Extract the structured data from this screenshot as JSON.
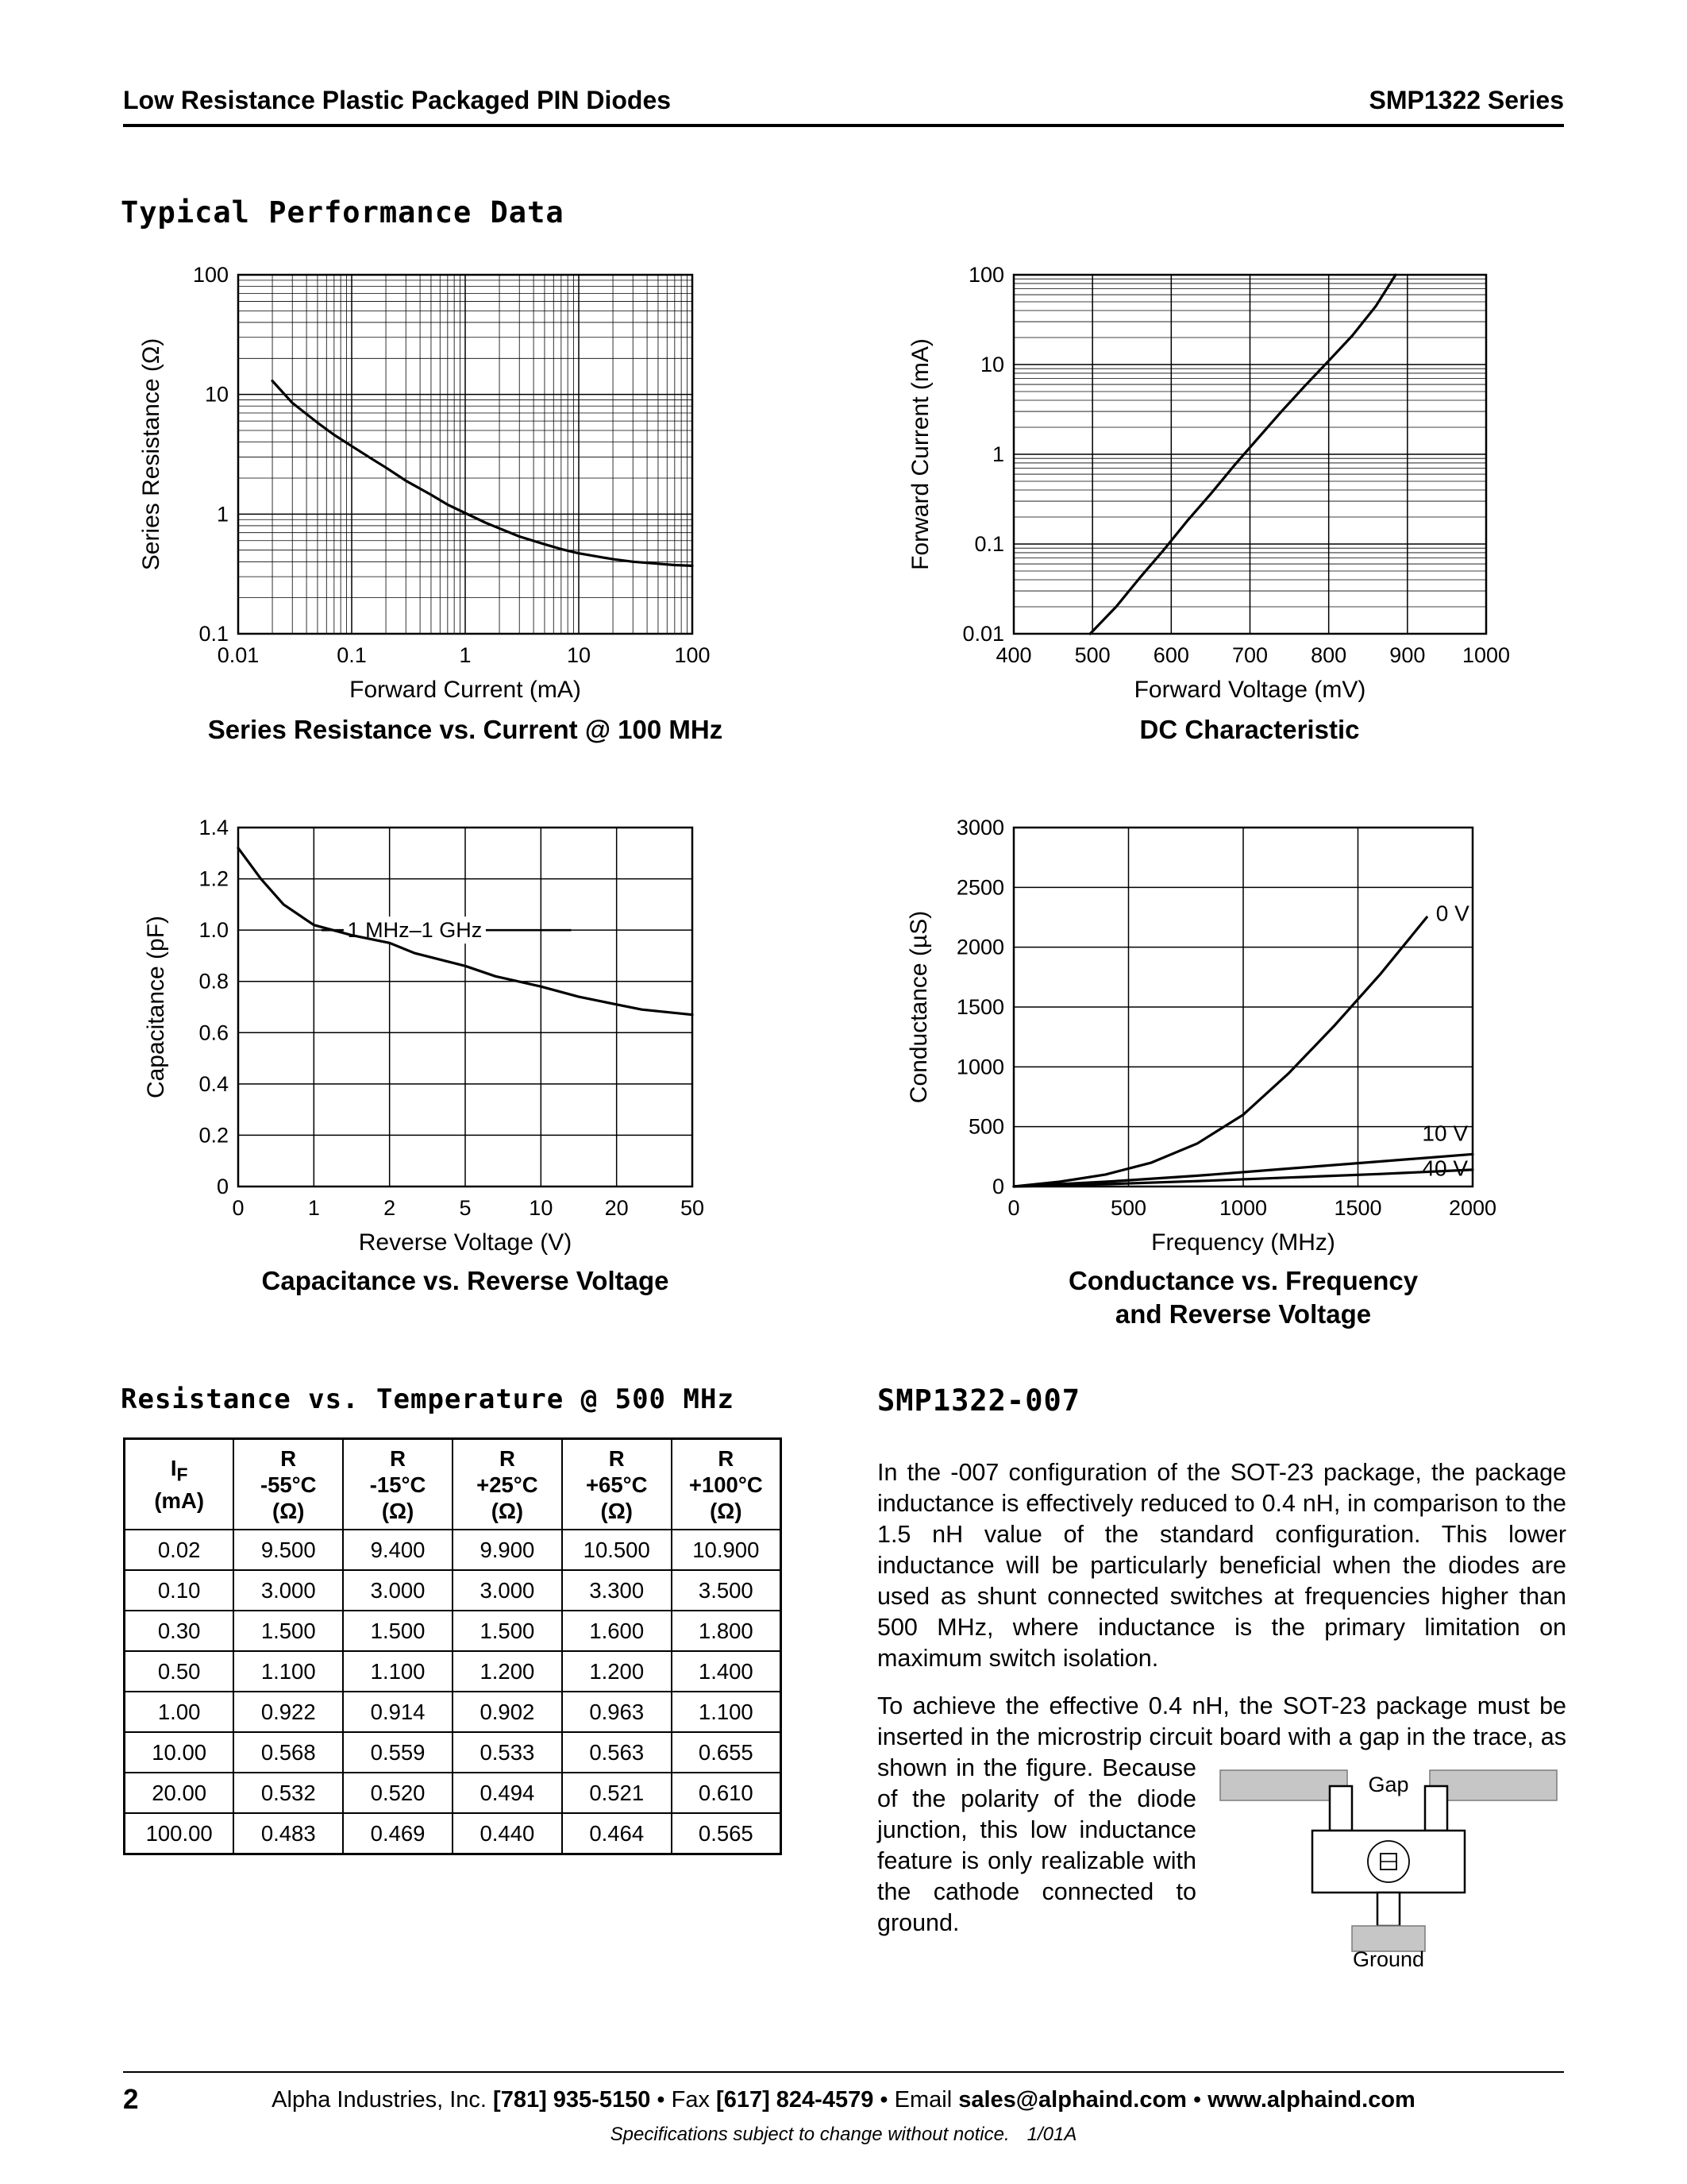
{
  "page": {
    "header_left": "Low Resistance Plastic Packaged PIN Diodes",
    "header_right": "SMP1322 Series",
    "section_title": "Typical Performance Data",
    "page_number": "2",
    "footer_segments": [
      {
        "t": "Alpha Industries, Inc. ",
        "b": false,
        "link": false
      },
      {
        "t": "[781] 935-5150",
        "b": true,
        "link": false
      },
      {
        "t": " • Fax ",
        "b": false,
        "link": false
      },
      {
        "t": "[617] 824-4579",
        "b": true,
        "link": false
      },
      {
        "t": " • Email ",
        "b": false,
        "link": false
      },
      {
        "t": "sales@alphaind.com",
        "b": true,
        "link": true
      },
      {
        "t": " • ",
        "b": false,
        "link": false
      },
      {
        "t": "www.alphaind.com",
        "b": true,
        "link": true
      }
    ],
    "footer_note": "Specifications subject to change without notice.",
    "footer_rev": "1/01A"
  },
  "chart_data": [
    {
      "id": "series-resistance-vs-current",
      "type": "line",
      "title": "Series Resistance vs. Current @ 100 MHz",
      "xlabel": "Forward Current (mA)",
      "ylabel": "Series Resistance (Ω)",
      "x": {
        "scale": "log",
        "range": [
          0.01,
          100
        ],
        "ticks": [
          [
            0.01,
            "0.01"
          ],
          [
            0.1,
            "0.1"
          ],
          [
            1,
            "1"
          ],
          [
            10,
            "10"
          ],
          [
            100,
            "100"
          ]
        ]
      },
      "y": {
        "scale": "log",
        "range": [
          0.1,
          100
        ],
        "ticks": [
          [
            100,
            "100"
          ],
          [
            10,
            "10"
          ],
          [
            1,
            "1"
          ],
          [
            0.1,
            "0.1"
          ]
        ]
      },
      "grid": "log-log full minor",
      "series": [
        {
          "name": "series-resistance",
          "points": [
            [
              0.02,
              13
            ],
            [
              0.03,
              8.5
            ],
            [
              0.05,
              5.8
            ],
            [
              0.07,
              4.6
            ],
            [
              0.1,
              3.7
            ],
            [
              0.15,
              2.9
            ],
            [
              0.2,
              2.45
            ],
            [
              0.3,
              1.9
            ],
            [
              0.5,
              1.45
            ],
            [
              0.7,
              1.2
            ],
            [
              1,
              1.02
            ],
            [
              1.5,
              0.85
            ],
            [
              2,
              0.76
            ],
            [
              3,
              0.65
            ],
            [
              5,
              0.56
            ],
            [
              7,
              0.51
            ],
            [
              10,
              0.47
            ],
            [
              15,
              0.44
            ],
            [
              20,
              0.42
            ],
            [
              30,
              0.4
            ],
            [
              50,
              0.385
            ],
            [
              70,
              0.375
            ],
            [
              100,
              0.37
            ]
          ]
        }
      ]
    },
    {
      "id": "dc-characteristic",
      "type": "line",
      "title": "DC Characteristic",
      "xlabel": "Forward Voltage (mV)",
      "ylabel": "Forward Current (mA)",
      "x": {
        "scale": "linear",
        "range": [
          400,
          1000
        ],
        "ticks": [
          [
            400,
            "400"
          ],
          [
            500,
            "500"
          ],
          [
            600,
            "600"
          ],
          [
            700,
            "700"
          ],
          [
            800,
            "800"
          ],
          [
            900,
            "900"
          ],
          [
            1000,
            "1000"
          ]
        ]
      },
      "y": {
        "scale": "log",
        "range": [
          0.01,
          100
        ],
        "ticks": [
          [
            100,
            "100"
          ],
          [
            10,
            "10"
          ],
          [
            1,
            "1"
          ],
          [
            0.1,
            "0.1"
          ],
          [
            0.01,
            "0.01"
          ]
        ]
      },
      "grid": "semilog-y",
      "series": [
        {
          "name": "dc-iv",
          "points": [
            [
              497,
              0.01
            ],
            [
              530,
              0.02
            ],
            [
              560,
              0.042
            ],
            [
              590,
              0.085
            ],
            [
              620,
              0.18
            ],
            [
              650,
              0.36
            ],
            [
              680,
              0.75
            ],
            [
              710,
              1.5
            ],
            [
              740,
              3
            ],
            [
              770,
              5.8
            ],
            [
              800,
              11
            ],
            [
              830,
              21
            ],
            [
              860,
              45
            ],
            [
              885,
              100
            ]
          ]
        }
      ]
    },
    {
      "id": "capacitance-vs-reverse-voltage",
      "type": "line",
      "title": "Capacitance vs. Reverse Voltage",
      "xlabel": "Reverse Voltage (V)",
      "ylabel": "Capacitance (pF)",
      "x": {
        "scale": "segmented",
        "ticks": [
          [
            0,
            "0"
          ],
          [
            1,
            "1"
          ],
          [
            2,
            "2"
          ],
          [
            5,
            "5"
          ],
          [
            10,
            "10"
          ],
          [
            20,
            "20"
          ],
          [
            50,
            "50"
          ]
        ]
      },
      "y": {
        "scale": "linear",
        "range": [
          0,
          1.4
        ],
        "ticks": [
          [
            0,
            "0"
          ],
          [
            0.2,
            "0.2"
          ],
          [
            0.4,
            "0.4"
          ],
          [
            0.6,
            "0.6"
          ],
          [
            0.8,
            "0.8"
          ],
          [
            1,
            "1.0"
          ],
          [
            1.2,
            "1.2"
          ],
          [
            1.4,
            "1.4"
          ]
        ]
      },
      "grid": "linear both",
      "annotation": {
        "text": "1 MHz–1 GHz",
        "y": 1.0,
        "line_x1": 1.1,
        "line_x2": 14,
        "text_x": 3
      },
      "series": [
        {
          "name": "capacitance",
          "points": [
            [
              0,
              1.32
            ],
            [
              0.3,
              1.2
            ],
            [
              0.6,
              1.1
            ],
            [
              1,
              1.02
            ],
            [
              1.5,
              0.98
            ],
            [
              2,
              0.95
            ],
            [
              3,
              0.91
            ],
            [
              5,
              0.86
            ],
            [
              7,
              0.82
            ],
            [
              10,
              0.78
            ],
            [
              15,
              0.74
            ],
            [
              20,
              0.71
            ],
            [
              30,
              0.69
            ],
            [
              50,
              0.67
            ]
          ]
        }
      ]
    },
    {
      "id": "conductance-vs-frequency",
      "type": "line",
      "title": "Conductance vs. Frequency",
      "title2": "and Reverse Voltage",
      "xlabel": "Frequency (MHz)",
      "ylabel": "Conductance (µS)",
      "x": {
        "scale": "linear",
        "range": [
          0,
          2000
        ],
        "ticks": [
          [
            0,
            "0"
          ],
          [
            500,
            "500"
          ],
          [
            1000,
            "1000"
          ],
          [
            1500,
            "1500"
          ],
          [
            2000,
            "2000"
          ]
        ]
      },
      "y": {
        "scale": "linear",
        "range": [
          0,
          3000
        ],
        "ticks": [
          [
            0,
            "0"
          ],
          [
            500,
            "500"
          ],
          [
            1000,
            "1000"
          ],
          [
            1500,
            "1500"
          ],
          [
            2000,
            "2000"
          ],
          [
            2500,
            "2500"
          ],
          [
            3000,
            "3000"
          ]
        ]
      },
      "grid": "linear both",
      "series": [
        {
          "name": "0 V",
          "points": [
            [
              0,
              0
            ],
            [
              200,
              40
            ],
            [
              400,
              100
            ],
            [
              600,
              200
            ],
            [
              800,
              360
            ],
            [
              1000,
              600
            ],
            [
              1200,
              950
            ],
            [
              1400,
              1350
            ],
            [
              1600,
              1780
            ],
            [
              1800,
              2250
            ]
          ],
          "label": {
            "text": "0 V",
            "x": 1840,
            "y": 2280,
            "anchor": "start"
          }
        },
        {
          "name": "10 V",
          "points": [
            [
              0,
              0
            ],
            [
              400,
              40
            ],
            [
              800,
              90
            ],
            [
              1200,
              150
            ],
            [
              1600,
              210
            ],
            [
              2000,
              270
            ]
          ],
          "label": {
            "text": "10 V",
            "x": 1780,
            "y": 440,
            "anchor": "start"
          }
        },
        {
          "name": "40 V",
          "points": [
            [
              0,
              0
            ],
            [
              400,
              20
            ],
            [
              800,
              45
            ],
            [
              1200,
              75
            ],
            [
              1600,
              105
            ],
            [
              2000,
              140
            ]
          ],
          "label": {
            "text": "40 V",
            "x": 1780,
            "y": 150,
            "anchor": "start"
          }
        }
      ]
    }
  ],
  "table": {
    "heading": "Resistance vs. Temperature @ 500 MHz",
    "columns": [
      {
        "top": "I",
        "sub": "F",
        "mid": "",
        "unit": "(mA)"
      },
      {
        "top": "R",
        "sub": "",
        "mid": "-55°C",
        "unit": "(Ω)"
      },
      {
        "top": "R",
        "sub": "",
        "mid": "-15°C",
        "unit": "(Ω)"
      },
      {
        "top": "R",
        "sub": "",
        "mid": "+25°C",
        "unit": "(Ω)"
      },
      {
        "top": "R",
        "sub": "",
        "mid": "+65°C",
        "unit": "(Ω)"
      },
      {
        "top": "R",
        "sub": "",
        "mid": "+100°C",
        "unit": "(Ω)"
      }
    ],
    "rows": [
      [
        "0.02",
        "9.500",
        "9.400",
        "9.900",
        "10.500",
        "10.900"
      ],
      [
        "0.10",
        "3.000",
        "3.000",
        "3.000",
        "3.300",
        "3.500"
      ],
      [
        "0.30",
        "1.500",
        "1.500",
        "1.500",
        "1.600",
        "1.800"
      ],
      [
        "0.50",
        "1.100",
        "1.100",
        "1.200",
        "1.200",
        "1.400"
      ],
      [
        "1.00",
        "0.922",
        "0.914",
        "0.902",
        "0.963",
        "1.100"
      ],
      [
        "10.00",
        "0.568",
        "0.559",
        "0.533",
        "0.563",
        "0.655"
      ],
      [
        "20.00",
        "0.532",
        "0.520",
        "0.494",
        "0.521",
        "0.610"
      ],
      [
        "100.00",
        "0.483",
        "0.469",
        "0.440",
        "0.464",
        "0.565"
      ]
    ]
  },
  "smp_section": {
    "heading": "SMP1322-007",
    "para1": "In the -007 configuration of the SOT-23 package, the package inductance is effectively reduced to 0.4 nH, in comparison to the 1.5 nH value of the standard configuration. This lower inductance will be particularly beneficial when the diodes are used as shunt connected switches at frequencies higher than 500 MHz, where inductance is the primary limitation on maximum switch isolation.",
    "para2a": "To achieve the effective 0.4 nH, the SOT-23 package must be inserted in the microstrip circuit board with a ",
    "para2b": "gap in the trace, as shown in the figure. Because of the polarity of the diode junction, this low inductance feature is only realizable with the cathode connected to ground.",
    "figure": {
      "gap_label": "Gap",
      "ground_label": "Ground"
    }
  }
}
